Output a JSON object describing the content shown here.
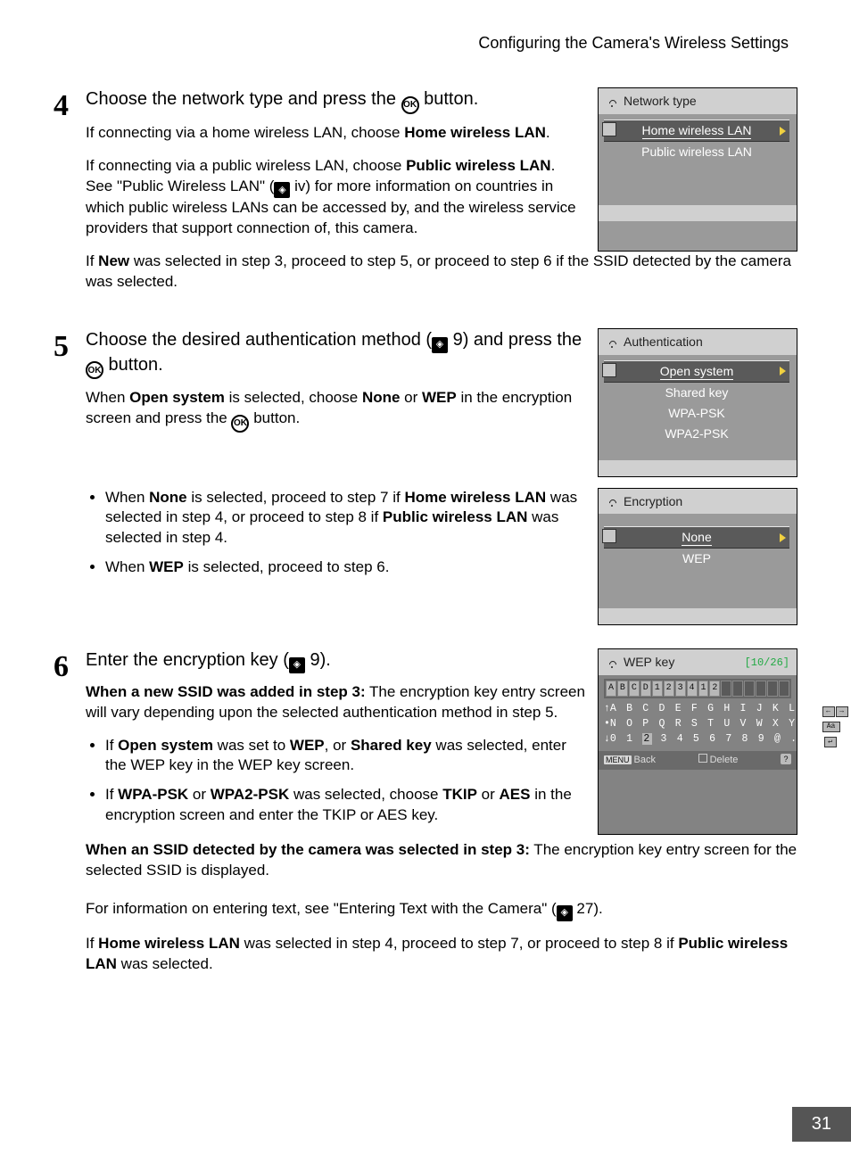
{
  "header": {
    "title": "Configuring the Camera's Wireless Settings"
  },
  "page_number": "31",
  "icons": {
    "ok_label": "OK",
    "ref_glyph": "◈"
  },
  "step4": {
    "number": "4",
    "title_before": "Choose the network type and press the ",
    "title_after": " button.",
    "p1_a": "If connecting via a home wireless LAN, choose ",
    "p1_b": "Home wireless LAN",
    "p1_c": ".",
    "p2_a": "If connecting via a public wireless LAN, choose ",
    "p2_b": "Public wireless LAN",
    "p2_c": ". See \"Public Wireless LAN\" (",
    "p2_d": " iv) for more information on countries in which public wireless LANs can be accessed by, and the wireless service providers that support connection of, this camera.",
    "p3_a": "If ",
    "p3_b": "New",
    "p3_c": " was selected in step 3, proceed to step 5, or proceed to step 6 if the SSID detected by the camera was selected.",
    "lcd": {
      "title": "Network type",
      "selected": "Home wireless LAN",
      "items": [
        "Public wireless LAN"
      ]
    }
  },
  "step5": {
    "number": "5",
    "title_before": "Choose the desired authentication method (",
    "title_mid": " 9) and press the ",
    "title_after": " button.",
    "p1_a": "When ",
    "p1_b": "Open system",
    "p1_c": " is selected, choose ",
    "p1_d": "None",
    "p1_e": " or ",
    "p1_f": "WEP",
    "p1_g": " in the encryption screen and press the ",
    "p1_h": " button.",
    "b1_a": "When ",
    "b1_b": "None",
    "b1_c": " is selected, proceed to step 7 if ",
    "b1_d": "Home wireless LAN",
    "b1_e": " was selected in step 4, or proceed to step 8 if ",
    "b1_f": "Public wireless LAN",
    "b1_g": " was selected in step 4.",
    "b2_a": "When ",
    "b2_b": "WEP",
    "b2_c": " is selected, proceed to step 6.",
    "lcd_auth": {
      "title": "Authentication",
      "selected": "Open system",
      "items": [
        "Shared key",
        "WPA-PSK",
        "WPA2-PSK"
      ]
    },
    "lcd_enc": {
      "title": "Encryption",
      "selected": "None",
      "items": [
        "WEP"
      ]
    }
  },
  "step6": {
    "number": "6",
    "title_before": "Enter the encryption key (",
    "title_after": " 9).",
    "p1_a": "When a new SSID was added in step 3:",
    "p1_b": " The encryption key entry screen will vary depending upon the selected authentication method in step 5.",
    "b1_a": "If ",
    "b1_b": "Open system",
    "b1_c": " was set to ",
    "b1_d": "WEP",
    "b1_e": ", or ",
    "b1_f": "Shared key",
    "b1_g": " was selected, enter the WEP key in the WEP key screen.",
    "b2_a": "If ",
    "b2_b": "WPA-PSK",
    "b2_c": " or ",
    "b2_d": "WPA2-PSK",
    "b2_e": " was selected, choose ",
    "b2_f": "TKIP",
    "b2_g": " or ",
    "b2_h": "AES",
    "b2_i": " in the encryption screen and enter the TKIP or AES key.",
    "p2_a": "When an SSID detected by the camera was selected in step 3:",
    "p2_b": " The encryption key entry screen for the selected SSID is displayed.",
    "p3_a": "For information on entering text, see \"Entering Text with the Camera\" (",
    "p3_b": " 27).",
    "p4_a": "If ",
    "p4_b": "Home wireless LAN",
    "p4_c": " was selected in step 4, proceed to step 7, or proceed to step 8 if ",
    "p4_d": "Public wireless LAN",
    "p4_e": " was selected.",
    "lcd_wep": {
      "title": "WEP key",
      "count": "[10/26]",
      "entered": [
        "A",
        "B",
        "C",
        "D",
        "1",
        "2",
        "3",
        "4",
        "1",
        "2"
      ],
      "blank_cells": 6,
      "kbd_row1": "A B C D E F G H I J K L M",
      "kbd_row2": "N O P Q R S T U V W X Y Z",
      "kbd_row3_a": "0 1 ",
      "kbd_row3_hl": "2",
      "kbd_row3_b": " 3 4 5 6 7 8 9 @ . –",
      "back": "Back",
      "delete": "Delete",
      "menu": "MENU"
    }
  }
}
